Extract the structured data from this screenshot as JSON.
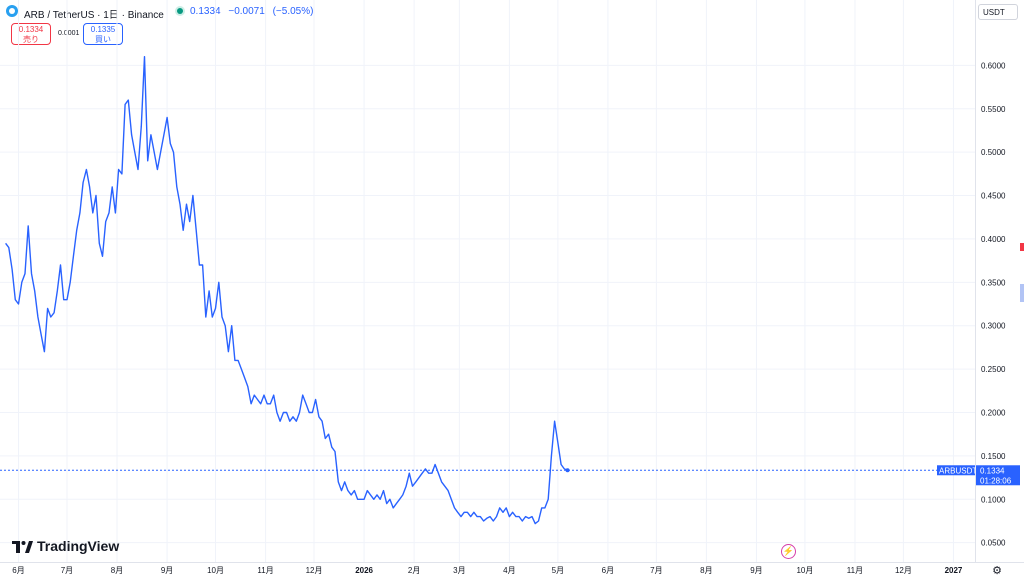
{
  "header": {
    "symbol_title": "ARB / TetherUS · 1日 · Binance",
    "last_price": "0.1334",
    "change_abs": "−0.0071",
    "change_pct": "(−5.05%)",
    "sell_price": "0.1334",
    "sell_label": "売り",
    "spread": "0.0001",
    "buy_price": "0.1335",
    "buy_label": "買い",
    "currency": "USDT"
  },
  "branding": {
    "logo_text": "TradingView"
  },
  "price_label": {
    "ticker": "ARBUSDT",
    "price": "0.1334",
    "countdown": "01:28:06"
  },
  "colors": {
    "line": "#2962ff",
    "sell": "#f23645",
    "buy": "#2962ff",
    "live": "#089981"
  },
  "icons": {
    "coin": "arbitrum-coin-icon",
    "flash": "lightning-icon",
    "settings": "gear-icon"
  },
  "chart_data": {
    "type": "line",
    "series": [
      {
        "name": "ARBUSDT",
        "points": [
          [
            "2025-05-24",
            0.395
          ],
          [
            "2025-05-26",
            0.39
          ],
          [
            "2025-05-28",
            0.365
          ],
          [
            "2025-05-30",
            0.33
          ],
          [
            "2025-06-01",
            0.325
          ],
          [
            "2025-06-03",
            0.35
          ],
          [
            "2025-06-05",
            0.36
          ],
          [
            "2025-06-07",
            0.415
          ],
          [
            "2025-06-09",
            0.36
          ],
          [
            "2025-06-11",
            0.34
          ],
          [
            "2025-06-13",
            0.31
          ],
          [
            "2025-06-15",
            0.29
          ],
          [
            "2025-06-17",
            0.27
          ],
          [
            "2025-06-19",
            0.32
          ],
          [
            "2025-06-21",
            0.31
          ],
          [
            "2025-06-23",
            0.315
          ],
          [
            "2025-06-25",
            0.34
          ],
          [
            "2025-06-27",
            0.37
          ],
          [
            "2025-06-29",
            0.33
          ],
          [
            "2025-07-01",
            0.33
          ],
          [
            "2025-07-03",
            0.35
          ],
          [
            "2025-07-05",
            0.38
          ],
          [
            "2025-07-07",
            0.41
          ],
          [
            "2025-07-09",
            0.43
          ],
          [
            "2025-07-11",
            0.465
          ],
          [
            "2025-07-13",
            0.48
          ],
          [
            "2025-07-15",
            0.46
          ],
          [
            "2025-07-17",
            0.43
          ],
          [
            "2025-07-19",
            0.45
          ],
          [
            "2025-07-21",
            0.395
          ],
          [
            "2025-07-23",
            0.38
          ],
          [
            "2025-07-25",
            0.42
          ],
          [
            "2025-07-27",
            0.43
          ],
          [
            "2025-07-29",
            0.46
          ],
          [
            "2025-07-31",
            0.43
          ],
          [
            "2025-08-02",
            0.48
          ],
          [
            "2025-08-04",
            0.475
          ],
          [
            "2025-08-06",
            0.555
          ],
          [
            "2025-08-08",
            0.56
          ],
          [
            "2025-08-10",
            0.52
          ],
          [
            "2025-08-12",
            0.5
          ],
          [
            "2025-08-14",
            0.48
          ],
          [
            "2025-08-16",
            0.53
          ],
          [
            "2025-08-18",
            0.61
          ],
          [
            "2025-08-20",
            0.49
          ],
          [
            "2025-08-22",
            0.52
          ],
          [
            "2025-08-24",
            0.5
          ],
          [
            "2025-08-26",
            0.48
          ],
          [
            "2025-08-28",
            0.5
          ],
          [
            "2025-08-30",
            0.52
          ],
          [
            "2025-09-01",
            0.54
          ],
          [
            "2025-09-03",
            0.51
          ],
          [
            "2025-09-05",
            0.5
          ],
          [
            "2025-09-07",
            0.46
          ],
          [
            "2025-09-09",
            0.44
          ],
          [
            "2025-09-11",
            0.41
          ],
          [
            "2025-09-13",
            0.44
          ],
          [
            "2025-09-15",
            0.42
          ],
          [
            "2025-09-17",
            0.45
          ],
          [
            "2025-09-19",
            0.41
          ],
          [
            "2025-09-21",
            0.37
          ],
          [
            "2025-09-23",
            0.37
          ],
          [
            "2025-09-25",
            0.31
          ],
          [
            "2025-09-27",
            0.34
          ],
          [
            "2025-09-29",
            0.31
          ],
          [
            "2025-10-01",
            0.32
          ],
          [
            "2025-10-03",
            0.35
          ],
          [
            "2025-10-05",
            0.31
          ],
          [
            "2025-10-07",
            0.3
          ],
          [
            "2025-10-09",
            0.27
          ],
          [
            "2025-10-11",
            0.3
          ],
          [
            "2025-10-13",
            0.26
          ],
          [
            "2025-10-15",
            0.26
          ],
          [
            "2025-10-17",
            0.25
          ],
          [
            "2025-10-19",
            0.24
          ],
          [
            "2025-10-21",
            0.23
          ],
          [
            "2025-10-23",
            0.21
          ],
          [
            "2025-10-25",
            0.22
          ],
          [
            "2025-10-27",
            0.215
          ],
          [
            "2025-10-29",
            0.21
          ],
          [
            "2025-10-31",
            0.22
          ],
          [
            "2025-11-02",
            0.21
          ],
          [
            "2025-11-04",
            0.21
          ],
          [
            "2025-11-06",
            0.22
          ],
          [
            "2025-11-08",
            0.2
          ],
          [
            "2025-11-10",
            0.19
          ],
          [
            "2025-11-12",
            0.2
          ],
          [
            "2025-11-14",
            0.2
          ],
          [
            "2025-11-16",
            0.19
          ],
          [
            "2025-11-18",
            0.195
          ],
          [
            "2025-11-20",
            0.19
          ],
          [
            "2025-11-22",
            0.2
          ],
          [
            "2025-11-24",
            0.22
          ],
          [
            "2025-11-26",
            0.21
          ],
          [
            "2025-11-28",
            0.2
          ],
          [
            "2025-11-30",
            0.2
          ],
          [
            "2025-12-02",
            0.215
          ],
          [
            "2025-12-04",
            0.195
          ],
          [
            "2025-12-06",
            0.19
          ],
          [
            "2025-12-08",
            0.17
          ],
          [
            "2025-12-10",
            0.175
          ],
          [
            "2025-12-12",
            0.16
          ],
          [
            "2025-12-14",
            0.155
          ],
          [
            "2025-12-16",
            0.12
          ],
          [
            "2025-12-18",
            0.11
          ],
          [
            "2025-12-20",
            0.12
          ],
          [
            "2025-12-22",
            0.11
          ],
          [
            "2025-12-24",
            0.105
          ],
          [
            "2025-12-26",
            0.11
          ],
          [
            "2025-12-28",
            0.1
          ],
          [
            "2025-12-30",
            0.1
          ],
          [
            "2026-01-01",
            0.1
          ],
          [
            "2026-01-03",
            0.11
          ],
          [
            "2026-01-05",
            0.105
          ],
          [
            "2026-01-07",
            0.1
          ],
          [
            "2026-01-09",
            0.105
          ],
          [
            "2026-01-11",
            0.1
          ],
          [
            "2026-01-13",
            0.11
          ],
          [
            "2026-01-15",
            0.095
          ],
          [
            "2026-01-17",
            0.1
          ],
          [
            "2026-01-19",
            0.09
          ],
          [
            "2026-01-21",
            0.095
          ],
          [
            "2026-01-23",
            0.1
          ],
          [
            "2026-01-25",
            0.105
          ],
          [
            "2026-01-27",
            0.115
          ],
          [
            "2026-01-29",
            0.13
          ],
          [
            "2026-01-31",
            0.115
          ],
          [
            "2026-02-02",
            0.12
          ],
          [
            "2026-02-04",
            0.125
          ],
          [
            "2026-02-06",
            0.13
          ],
          [
            "2026-02-08",
            0.135
          ],
          [
            "2026-02-10",
            0.13
          ],
          [
            "2026-02-12",
            0.13
          ],
          [
            "2026-02-14",
            0.14
          ],
          [
            "2026-02-16",
            0.13
          ],
          [
            "2026-02-18",
            0.12
          ],
          [
            "2026-02-20",
            0.115
          ],
          [
            "2026-02-22",
            0.11
          ],
          [
            "2026-02-24",
            0.1
          ],
          [
            "2026-02-26",
            0.09
          ],
          [
            "2026-02-28",
            0.085
          ],
          [
            "2026-03-02",
            0.08
          ],
          [
            "2026-03-04",
            0.085
          ],
          [
            "2026-03-06",
            0.085
          ],
          [
            "2026-03-08",
            0.08
          ],
          [
            "2026-03-10",
            0.085
          ],
          [
            "2026-03-12",
            0.08
          ],
          [
            "2026-03-14",
            0.08
          ],
          [
            "2026-03-16",
            0.075
          ],
          [
            "2026-03-18",
            0.078
          ],
          [
            "2026-03-20",
            0.08
          ],
          [
            "2026-03-22",
            0.075
          ],
          [
            "2026-03-24",
            0.08
          ],
          [
            "2026-03-26",
            0.09
          ],
          [
            "2026-03-28",
            0.085
          ],
          [
            "2026-03-30",
            0.09
          ],
          [
            "2026-04-01",
            0.08
          ],
          [
            "2026-04-03",
            0.085
          ],
          [
            "2026-04-05",
            0.08
          ],
          [
            "2026-04-07",
            0.08
          ],
          [
            "2026-04-09",
            0.075
          ],
          [
            "2026-04-11",
            0.08
          ],
          [
            "2026-04-13",
            0.078
          ],
          [
            "2026-04-15",
            0.08
          ],
          [
            "2026-04-17",
            0.072
          ],
          [
            "2026-04-19",
            0.075
          ],
          [
            "2026-04-21",
            0.09
          ],
          [
            "2026-04-23",
            0.09
          ],
          [
            "2026-04-25",
            0.1
          ],
          [
            "2026-04-27",
            0.15
          ],
          [
            "2026-04-29",
            0.19
          ],
          [
            "2026-05-01",
            0.165
          ],
          [
            "2026-05-03",
            0.14
          ],
          [
            "2026-05-05",
            0.135
          ],
          [
            "2026-05-07",
            0.1334
          ]
        ]
      }
    ],
    "x_ticks": [
      {
        "x": "2025-06-01",
        "label": "6月"
      },
      {
        "x": "2025-07-01",
        "label": "7月"
      },
      {
        "x": "2025-08-01",
        "label": "8月"
      },
      {
        "x": "2025-09-01",
        "label": "9月"
      },
      {
        "x": "2025-10-01",
        "label": "10月"
      },
      {
        "x": "2025-11-01",
        "label": "11月"
      },
      {
        "x": "2025-12-01",
        "label": "12月"
      },
      {
        "x": "2026-01-01",
        "label": "2026"
      },
      {
        "x": "2026-02-01",
        "label": "2月"
      },
      {
        "x": "2026-03-01",
        "label": "3月"
      },
      {
        "x": "2026-04-01",
        "label": "4月"
      },
      {
        "x": "2026-05-01",
        "label": "5月"
      },
      {
        "x": "2026-06-01",
        "label": "6月"
      },
      {
        "x": "2026-07-01",
        "label": "7月"
      },
      {
        "x": "2026-08-01",
        "label": "8月"
      },
      {
        "x": "2026-09-01",
        "label": "9月"
      },
      {
        "x": "2026-10-01",
        "label": "10月"
      },
      {
        "x": "2026-11-01",
        "label": "11月"
      },
      {
        "x": "2026-12-01",
        "label": "12月"
      },
      {
        "x": "2027-01-01",
        "label": "2027"
      }
    ],
    "y_ticks": [
      0.05,
      0.1,
      0.15,
      0.2,
      0.25,
      0.3,
      0.35,
      0.4,
      0.45,
      0.5,
      0.55,
      0.6
    ],
    "y_tick_labels": [
      "0.0500",
      "0.1000",
      "0.1500",
      "0.2000",
      "0.2500",
      "0.3000",
      "0.3500",
      "0.4000",
      "0.4500",
      "0.5000",
      "0.5500",
      "0.6000"
    ],
    "ylim": [
      0.03,
      0.65
    ],
    "xlim": [
      "2025-05-23",
      "2027-01-10"
    ],
    "last_value": 0.1334,
    "grid": true,
    "title": "",
    "xlabel": "",
    "ylabel": ""
  }
}
